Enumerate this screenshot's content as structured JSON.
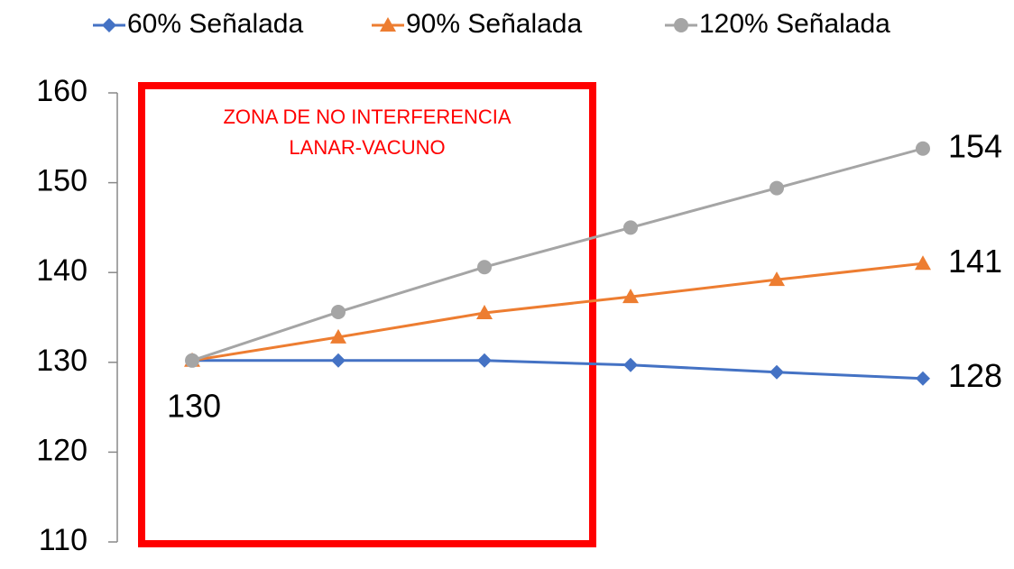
{
  "chart_data": {
    "type": "line",
    "categories": [
      null,
      null,
      null,
      null,
      null,
      null
    ],
    "series": [
      {
        "name": "60% Señalada",
        "color": "#4472c4",
        "marker": "diamond",
        "values": [
          130.2,
          130.2,
          130.2,
          129.7,
          128.9,
          128.2
        ],
        "value_labels": [
          "130",
          null,
          null,
          null,
          null,
          "128"
        ]
      },
      {
        "name": "90% Señalada",
        "color": "#ed7d31",
        "marker": "triangle",
        "values": [
          130.2,
          132.8,
          135.5,
          137.3,
          139.2,
          141.0
        ],
        "value_labels": [
          null,
          null,
          null,
          null,
          null,
          "141"
        ]
      },
      {
        "name": "120% Señalada",
        "color": "#a5a5a5",
        "marker": "circle",
        "values": [
          130.2,
          135.6,
          140.6,
          145.0,
          149.4,
          153.8
        ],
        "value_labels": [
          null,
          null,
          null,
          null,
          null,
          "154"
        ]
      }
    ],
    "annotations": [
      "ZONA DE NO INTERFERENCIA",
      "LANAR-VACUNO"
    ],
    "ylim": [
      110,
      160
    ],
    "yticks": [
      110,
      120,
      130,
      140,
      150,
      160
    ],
    "legend": "top",
    "grid": false
  }
}
